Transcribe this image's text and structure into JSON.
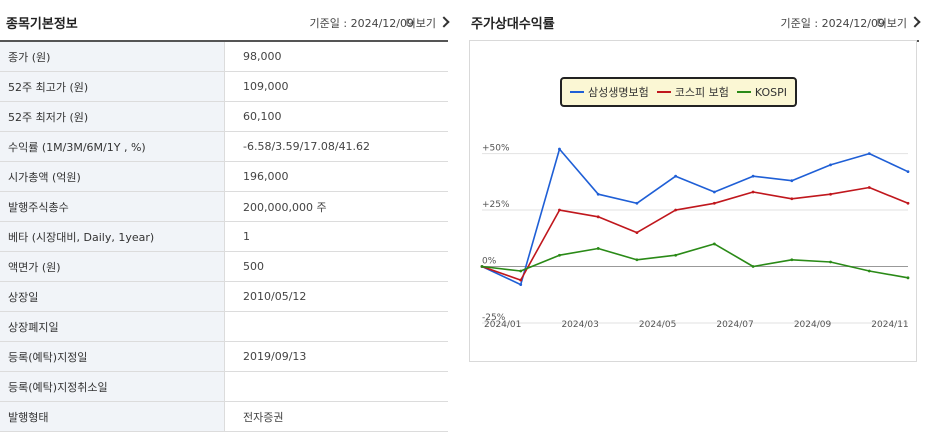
{
  "left": {
    "title": "종목기본정보",
    "date": "기준일 : 2024/12/09",
    "more": "더보기",
    "rows": [
      {
        "label": "종가 (원)",
        "value": "98,000"
      },
      {
        "label": "52주 최고가 (원)",
        "value": "109,000"
      },
      {
        "label": "52주 최저가 (원)",
        "value": "60,100"
      },
      {
        "label": "수익률 (1M/3M/6M/1Y , %)",
        "value": "-6.58/3.59/17.08/41.62"
      },
      {
        "label": "시가총액 (억원)",
        "value": "196,000"
      },
      {
        "label": "발행주식총수",
        "value": "200,000,000 주"
      },
      {
        "label": "베타 (시장대비, Daily, 1year)",
        "value": "1"
      },
      {
        "label": "액면가 (원)",
        "value": "500"
      },
      {
        "label": "상장일",
        "value": "2010/05/12"
      },
      {
        "label": "상장폐지일",
        "value": ""
      },
      {
        "label": "등록(예탁)지정일",
        "value": "2019/09/13"
      },
      {
        "label": "등록(예탁)지정취소일",
        "value": ""
      },
      {
        "label": "발행형태",
        "value": "전자증권"
      }
    ]
  },
  "right": {
    "title": "주가상대수익률",
    "date": "기준일 : 2024/12/09",
    "more": "더보기"
  },
  "chart_data": {
    "type": "line",
    "x": [
      "2024/01",
      "2024/02",
      "2024/03",
      "2024/04",
      "2024/05",
      "2024/06",
      "2024/07",
      "2024/08",
      "2024/09",
      "2024/10",
      "2024/11",
      "2024/12"
    ],
    "x_ticks": [
      "2024/01",
      "2024/03",
      "2024/05",
      "2024/07",
      "2024/09",
      "2024/11"
    ],
    "y_ticks": [
      "+50%",
      "+25%",
      "0%",
      "-25%"
    ],
    "ylim": [
      -25,
      60
    ],
    "grid": true,
    "legend_position": "top-center",
    "series": [
      {
        "name": "삼성생명보험",
        "color": "#1f5fd6",
        "values": [
          0,
          -8,
          52,
          32,
          28,
          40,
          33,
          40,
          38,
          45,
          50,
          42
        ]
      },
      {
        "name": "코스피 보험",
        "color": "#c0171d",
        "values": [
          0,
          -6,
          25,
          22,
          15,
          25,
          28,
          33,
          30,
          32,
          35,
          28
        ]
      },
      {
        "name": "KOSPI",
        "color": "#2a8a17",
        "values": [
          0,
          -2,
          5,
          8,
          3,
          5,
          10,
          0,
          3,
          2,
          -2,
          -5
        ]
      }
    ]
  }
}
